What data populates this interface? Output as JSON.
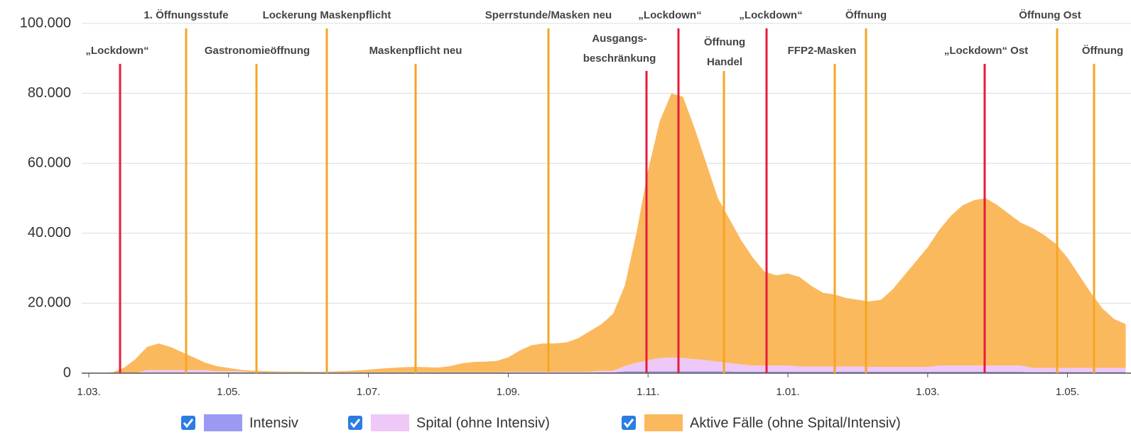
{
  "chart_data": {
    "type": "stacked-area",
    "categories": [
      "1.03.",
      null,
      null,
      null,
      null,
      null,
      null,
      null,
      null,
      null,
      null,
      null,
      "1.05.",
      null,
      null,
      null,
      null,
      null,
      null,
      null,
      null,
      null,
      null,
      null,
      "1.07.",
      null,
      null,
      null,
      null,
      null,
      null,
      null,
      null,
      null,
      null,
      null,
      "1.09.",
      null,
      null,
      null,
      null,
      null,
      null,
      null,
      null,
      null,
      null,
      null,
      "1.11.",
      null,
      null,
      null,
      null,
      null,
      null,
      null,
      null,
      null,
      null,
      null,
      "1.01.",
      null,
      null,
      null,
      null,
      null,
      null,
      null,
      null,
      null,
      null,
      null,
      "1.03.",
      null,
      null,
      null,
      null,
      null,
      null,
      null,
      null,
      null,
      null,
      null,
      "1.05.",
      null,
      null,
      null,
      null,
      null
    ],
    "series": [
      {
        "name": "Intensiv",
        "color": "#9b99f2",
        "values": [
          0,
          0,
          0,
          0,
          0,
          100,
          100,
          100,
          100,
          100,
          100,
          50,
          50,
          50,
          50,
          50,
          50,
          50,
          50,
          50,
          50,
          50,
          50,
          50,
          50,
          50,
          50,
          50,
          50,
          50,
          50,
          50,
          50,
          50,
          50,
          50,
          100,
          100,
          100,
          100,
          100,
          100,
          100,
          100,
          200,
          200,
          500,
          500,
          500,
          500,
          500,
          500,
          500,
          500,
          500,
          500,
          400,
          400,
          400,
          400,
          400,
          400,
          400,
          400,
          400,
          400,
          400,
          400,
          400,
          400,
          400,
          400,
          400,
          400,
          400,
          400,
          400,
          400,
          400,
          400,
          400,
          300,
          300,
          300,
          300,
          300,
          300,
          300,
          300,
          300
        ]
      },
      {
        "name": "Spital (ohne Intensiv)",
        "color": "#eec8f7",
        "values": [
          0,
          0,
          0,
          0,
          0,
          800,
          800,
          800,
          800,
          800,
          800,
          500,
          500,
          500,
          200,
          200,
          200,
          200,
          200,
          200,
          200,
          200,
          200,
          200,
          200,
          200,
          200,
          200,
          200,
          200,
          200,
          200,
          200,
          200,
          200,
          200,
          300,
          300,
          300,
          300,
          300,
          300,
          300,
          300,
          500,
          500,
          1500,
          2500,
          3200,
          3800,
          4000,
          3800,
          3500,
          3200,
          2800,
          2400,
          2100,
          1800,
          1800,
          1800,
          1800,
          1500,
          1500,
          1500,
          1500,
          1500,
          1500,
          1400,
          1400,
          1400,
          1400,
          1400,
          1400,
          1800,
          1800,
          1800,
          1800,
          1800,
          1800,
          1800,
          1800,
          1200,
          1200,
          1200,
          1200,
          1200,
          1200,
          1200,
          1200,
          1200
        ]
      },
      {
        "name": "Aktive Fälle (ohne Spital/Intensiv)",
        "color": "#fbb95e",
        "values": [
          0,
          0,
          200,
          1500,
          4000,
          6600,
          7600,
          6600,
          5100,
          3600,
          2100,
          1450,
          950,
          450,
          450,
          350,
          250,
          200,
          200,
          150,
          150,
          250,
          350,
          550,
          750,
          1050,
          1250,
          1450,
          1550,
          1450,
          1350,
          1750,
          2550,
          2950,
          3050,
          3250,
          4100,
          6100,
          7600,
          8100,
          8100,
          8400,
          9600,
          11600,
          13300,
          16300,
          23000,
          37000,
          54300,
          67700,
          75500,
          74700,
          66000,
          56300,
          46700,
          41100,
          35500,
          30800,
          26800,
          25800,
          26300,
          25600,
          23100,
          21100,
          20600,
          19600,
          19100,
          18700,
          19200,
          22200,
          26200,
          30200,
          34200,
          38800,
          42800,
          45800,
          47300,
          47800,
          45800,
          43300,
          40800,
          40000,
          38000,
          35500,
          31500,
          26500,
          21500,
          17000,
          14000,
          12500
        ]
      }
    ],
    "ylim": [
      0,
      100000
    ],
    "yticks": [
      0,
      {
        "value": 20000,
        "label": "20.000"
      },
      {
        "value": 40000,
        "label": "40.000"
      },
      {
        "value": 60000,
        "label": "60.000"
      },
      {
        "value": 80000,
        "label": "80.000"
      },
      {
        "value": 100000,
        "label": "100.000"
      }
    ],
    "grid": true,
    "legend": "bottom",
    "annotations": [
      {
        "text": "„Lockdown“",
        "color": "#e61c3c"
      },
      {
        "text": "1. Öffnungsstufe",
        "color": "#f5a524"
      },
      {
        "text": "Gastronomieöffnung",
        "color": "#f5a524"
      },
      {
        "text": "Lockerung Maskenpflicht",
        "color": "#f5a524"
      },
      {
        "text": "Maskenpflicht neu",
        "color": "#f5a524"
      },
      {
        "text": "Sperrstunde/Masken neu",
        "color": "#f5a524"
      },
      {
        "text": [
          "Ausgangs-",
          "beschränkung"
        ],
        "color": "#e61c3c"
      },
      {
        "text": "„Lockdown“",
        "color": "#e61c3c"
      },
      {
        "text": [
          "Öffnung",
          "Handel"
        ],
        "color": "#f5a524"
      },
      {
        "text": "„Lockdown“",
        "color": "#e61c3c"
      },
      {
        "text": "FFP2-Masken",
        "color": "#f5a524"
      },
      {
        "text": "Öffnung",
        "color": "#f5a524"
      },
      {
        "text": "„Lockdown“ Ost",
        "color": "#e61c3c"
      },
      {
        "text": "Öffnung Ost",
        "color": "#f5a524"
      },
      {
        "text": "Öffnung",
        "color": "#f5a524"
      }
    ]
  }
}
